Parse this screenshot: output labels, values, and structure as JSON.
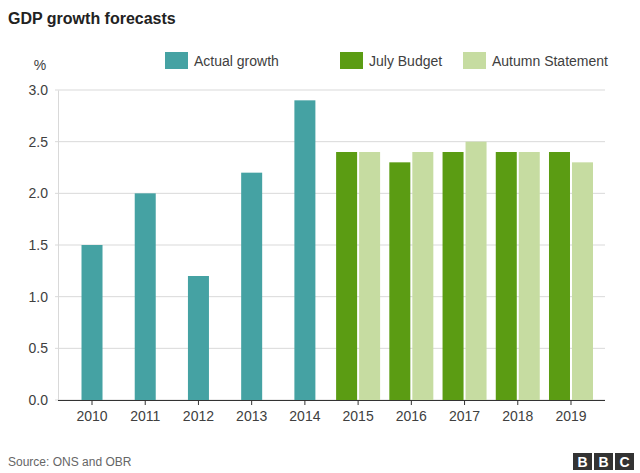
{
  "chart_data": {
    "type": "bar",
    "title": "GDP growth forecasts",
    "y_label": "%",
    "source": "Source: ONS and OBR",
    "logo": [
      "B",
      "B",
      "C"
    ],
    "categories": [
      "2010",
      "2011",
      "2012",
      "2013",
      "2014",
      "2015",
      "2016",
      "2017",
      "2018",
      "2019"
    ],
    "series": [
      {
        "name": "Actual growth",
        "color": "#45a2a3",
        "values": [
          1.5,
          2.0,
          1.2,
          2.2,
          2.9,
          null,
          null,
          null,
          null,
          null
        ]
      },
      {
        "name": "July Budget",
        "color": "#5b9c13",
        "values": [
          null,
          null,
          null,
          null,
          null,
          2.4,
          2.3,
          2.4,
          2.4,
          2.4
        ]
      },
      {
        "name": "Autumn Statement",
        "color": "#c6dca1",
        "values": [
          null,
          null,
          null,
          null,
          null,
          2.4,
          2.4,
          2.5,
          2.4,
          2.3
        ]
      }
    ],
    "ylim": [
      0,
      3
    ],
    "yticks": [
      {
        "value": 0,
        "label": "0.0"
      },
      0.5,
      {
        "value": 1,
        "label": "1.0"
      },
      1.5,
      {
        "value": 2,
        "label": "2.0"
      },
      2.5,
      {
        "value": 3,
        "label": "3.0"
      }
    ],
    "grid": true,
    "legend": "top"
  }
}
